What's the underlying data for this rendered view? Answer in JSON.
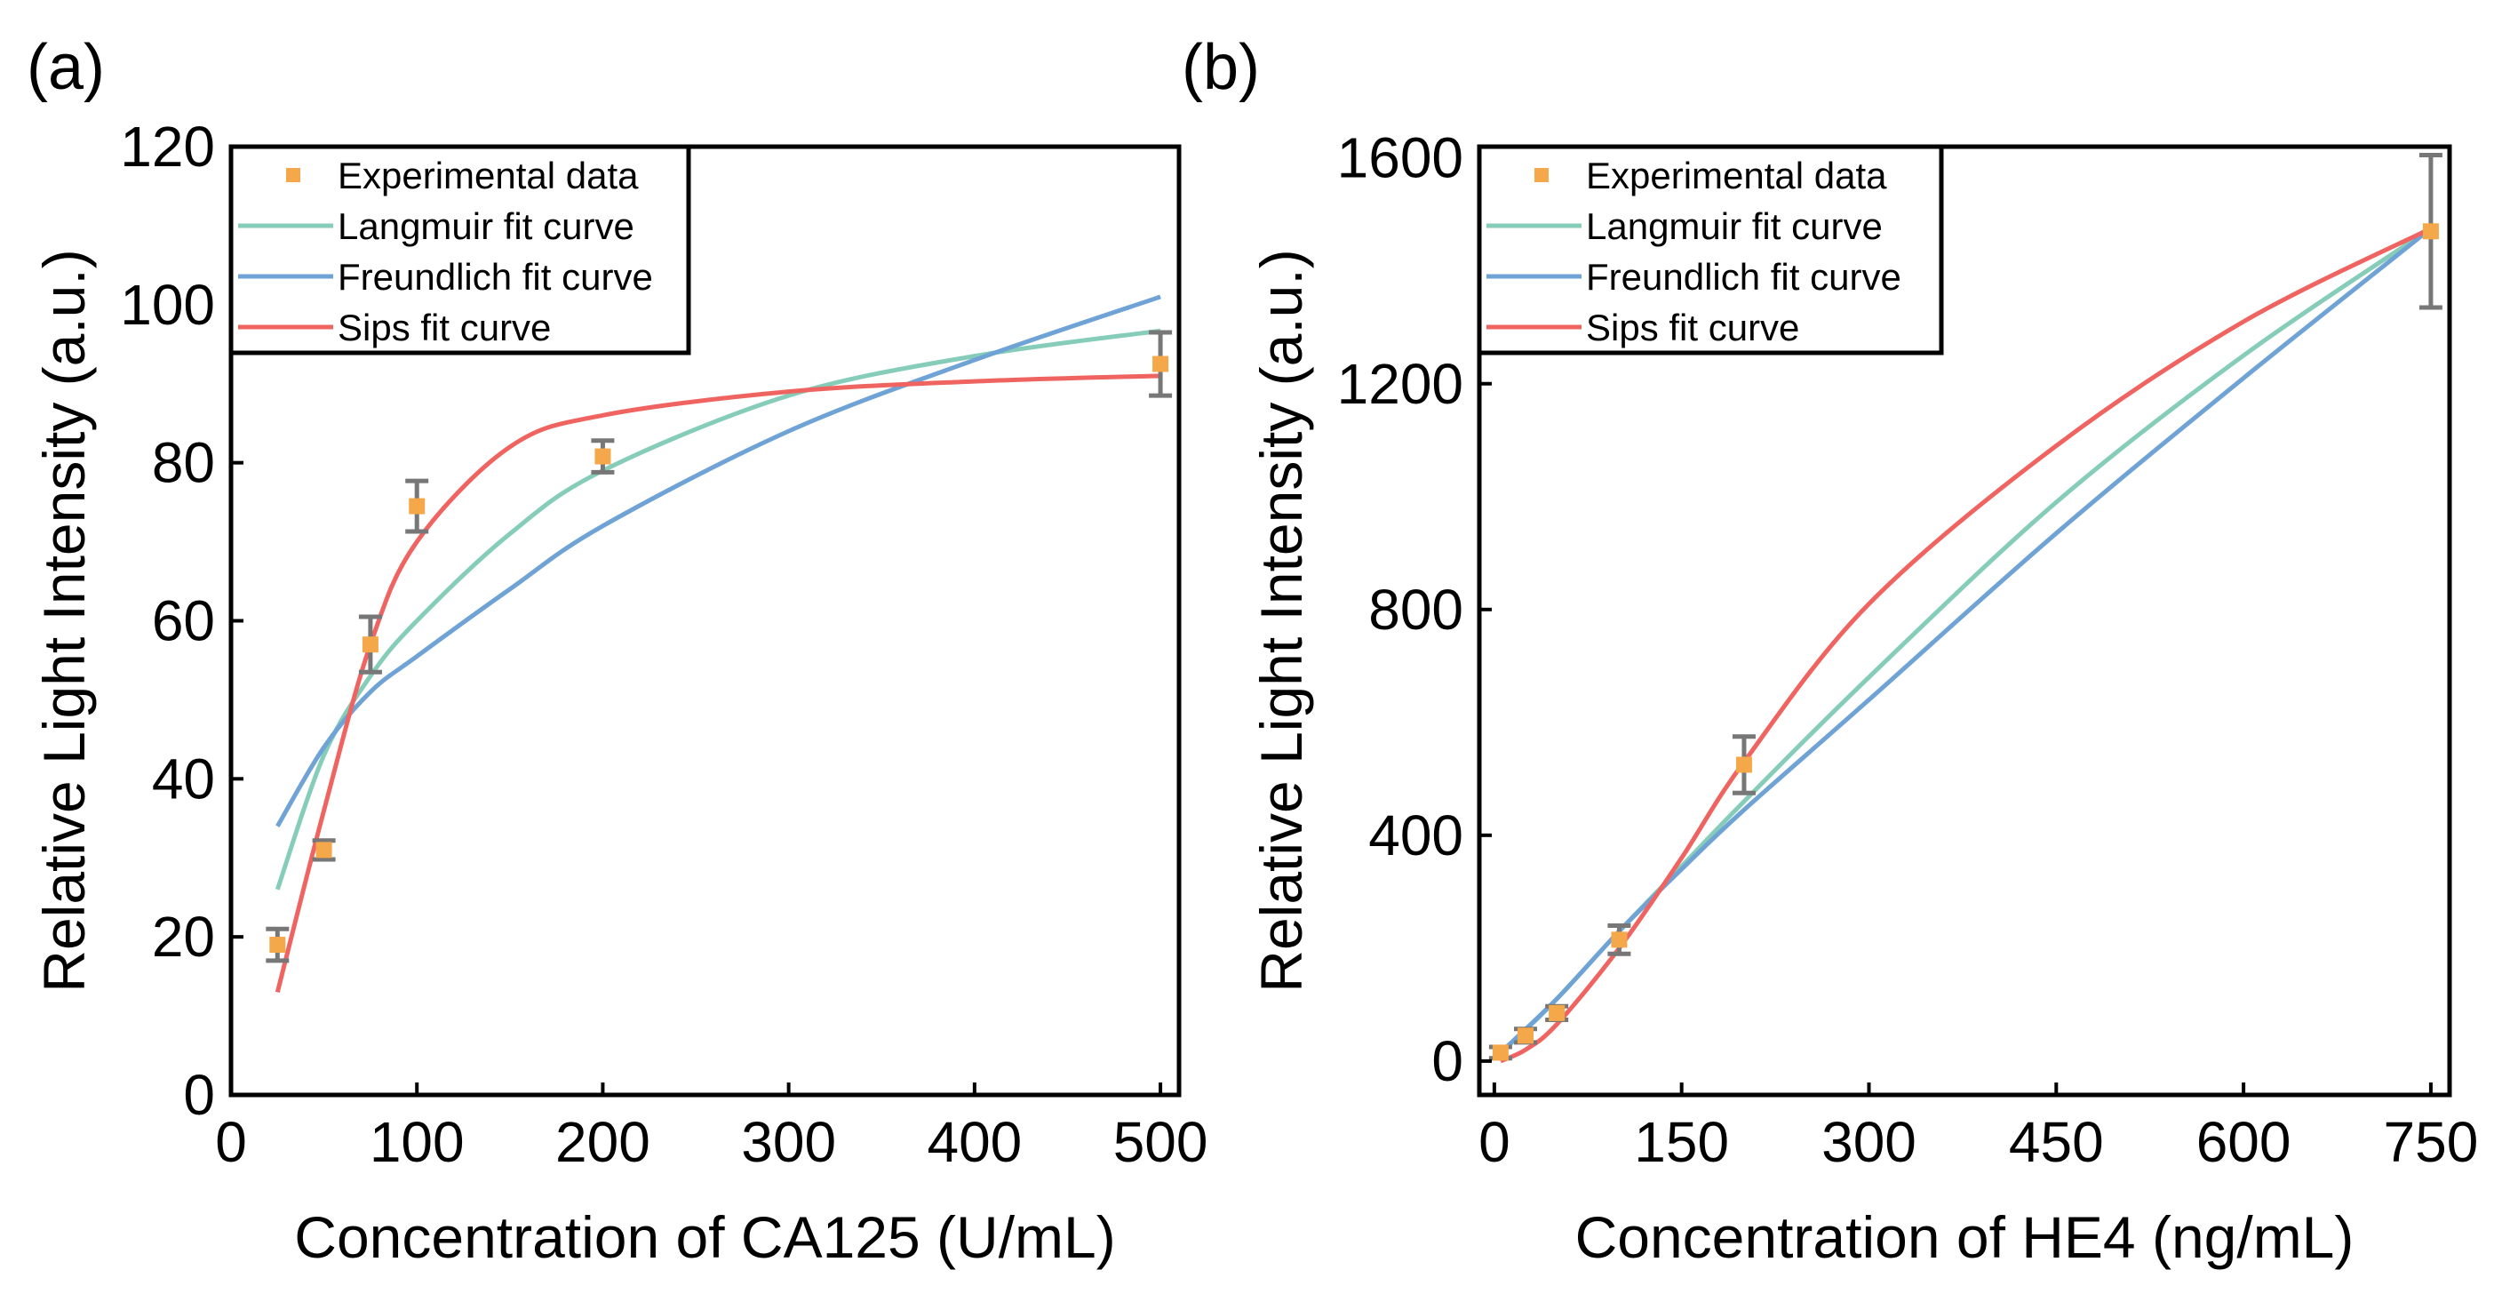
{
  "colors": {
    "data": "#F5A84A",
    "langmuir": "#86CDB9",
    "freundlich": "#6FA3D6",
    "sips": "#EF6461",
    "error": "#777777"
  },
  "chart_data": [
    {
      "type": "scatter+line",
      "panel_label": "(a)",
      "xlabel": "Concentration of CA125 (U/mL)",
      "ylabel": "Relative Light Intensity (a.u.)",
      "xlim": [
        0,
        510
      ],
      "ylim": [
        0,
        120
      ],
      "xticks": [
        0,
        100,
        200,
        300,
        400,
        500
      ],
      "yticks": [
        0,
        20,
        40,
        60,
        80,
        100,
        120
      ],
      "legend": [
        "Experimental data",
        "Langmuir fit curve",
        "Freundlich fit curve",
        "Sips fit curve"
      ],
      "legend_position": "top-left",
      "data": {
        "x": [
          25,
          50,
          75,
          100,
          200,
          500
        ],
        "y": [
          19,
          31,
          57,
          74.5,
          80.8,
          92.5
        ],
        "err": [
          2,
          1.2,
          3.5,
          3.2,
          2,
          4
        ]
      },
      "series": [
        {
          "name": "Langmuir fit curve",
          "x": [
            25,
            50,
            75,
            100,
            150,
            200,
            300,
            400,
            500
          ],
          "y": [
            26,
            43,
            53,
            60,
            71,
            79,
            88.5,
            93.5,
            96.7
          ]
        },
        {
          "name": "Freundlich fit curve",
          "x": [
            25,
            50,
            75,
            100,
            150,
            200,
            300,
            400,
            500
          ],
          "y": [
            34,
            44,
            51,
            55.5,
            64,
            72,
            84,
            93,
            101
          ]
        },
        {
          "name": "Sips fit curve",
          "x": [
            25,
            50,
            75,
            100,
            150,
            200,
            300,
            400,
            500
          ],
          "y": [
            13,
            36,
            57,
            70,
            82,
            86,
            89,
            90.3,
            91
          ]
        }
      ]
    },
    {
      "type": "scatter+line",
      "panel_label": "(b)",
      "xlabel": "Concentration of HE4 (ng/mL)",
      "ylabel": "Relative Light Intensity (a.u.)",
      "xlim": [
        -12,
        765
      ],
      "ylim": [
        -60,
        1620
      ],
      "xticks": [
        0,
        150,
        300,
        450,
        600,
        750
      ],
      "yticks": [
        0,
        400,
        800,
        1200,
        1600
      ],
      "legend": [
        "Experimental data",
        "Langmuir fit curve",
        "Freundlich fit curve",
        "Sips fit curve"
      ],
      "legend_position": "top-left",
      "data": {
        "x": [
          5,
          25,
          50,
          100,
          200,
          750
        ],
        "y": [
          15,
          45,
          85,
          215,
          525,
          1470
        ],
        "err": [
          10,
          12,
          12,
          25,
          50,
          135
        ]
      },
      "series": [
        {
          "name": "Langmuir fit curve",
          "x": [
            5,
            25,
            50,
            100,
            150,
            200,
            300,
            450,
            600,
            750
          ],
          "y": [
            15,
            55,
            110,
            230,
            345,
            460,
            680,
            990,
            1250,
            1475
          ]
        },
        {
          "name": "Freundlich fit curve",
          "x": [
            5,
            50,
            100,
            150,
            200,
            300,
            450,
            600,
            750
          ],
          "y": [
            15,
            110,
            230,
            340,
            445,
            640,
            935,
            1210,
            1475
          ]
        },
        {
          "name": "Sips fit curve",
          "x": [
            5,
            25,
            50,
            100,
            150,
            200,
            300,
            450,
            600,
            750
          ],
          "y": [
            0,
            20,
            65,
            200,
            360,
            530,
            810,
            1090,
            1310,
            1475
          ]
        }
      ]
    }
  ]
}
